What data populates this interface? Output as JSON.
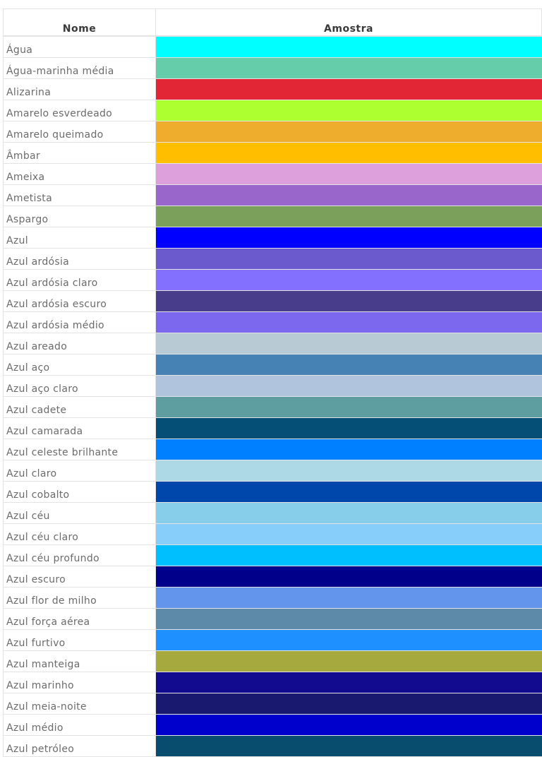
{
  "table": {
    "headers": {
      "name": "Nome",
      "sample": "Amostra"
    },
    "rows": [
      {
        "name": "Água",
        "color": "#00FFFF"
      },
      {
        "name": "Água-marinha média",
        "color": "#66CDAA"
      },
      {
        "name": "Alizarina",
        "color": "#E32636"
      },
      {
        "name": "Amarelo esverdeado",
        "color": "#ADFF2F"
      },
      {
        "name": "Amarelo queimado",
        "color": "#EEAD2D"
      },
      {
        "name": "Âmbar",
        "color": "#FFBF00"
      },
      {
        "name": "Ameixa",
        "color": "#DDA0DD"
      },
      {
        "name": "Ametista",
        "color": "#9966CC"
      },
      {
        "name": "Aspargo",
        "color": "#7BA05B"
      },
      {
        "name": "Azul",
        "color": "#0000FF"
      },
      {
        "name": "Azul ardósia",
        "color": "#6A5ACD"
      },
      {
        "name": "Azul ardósia claro",
        "color": "#8470FF"
      },
      {
        "name": "Azul ardósia escuro",
        "color": "#483D8B"
      },
      {
        "name": "Azul ardósia médio",
        "color": "#7B68EE"
      },
      {
        "name": "Azul areado",
        "color": "#B8CAD4"
      },
      {
        "name": "Azul aço",
        "color": "#4682B4"
      },
      {
        "name": "Azul aço claro",
        "color": "#B0C4DE"
      },
      {
        "name": "Azul cadete",
        "color": "#5F9EA0"
      },
      {
        "name": "Azul camarada",
        "color": "#054F77"
      },
      {
        "name": "Azul celeste brilhante",
        "color": "#007FFF"
      },
      {
        "name": "Azul claro",
        "color": "#ADD8E6"
      },
      {
        "name": "Azul cobalto",
        "color": "#0047AB"
      },
      {
        "name": "Azul céu",
        "color": "#87CEEB"
      },
      {
        "name": "Azul céu claro",
        "color": "#87CEFA"
      },
      {
        "name": "Azul céu profundo",
        "color": "#00BFFF"
      },
      {
        "name": "Azul escuro",
        "color": "#00008B"
      },
      {
        "name": "Azul flor de milho",
        "color": "#6495ED"
      },
      {
        "name": "Azul força aérea",
        "color": "#5D8AA8"
      },
      {
        "name": "Azul furtivo",
        "color": "#1E90FF"
      },
      {
        "name": "Azul manteiga",
        "color": "#A6AA3E"
      },
      {
        "name": "Azul marinho",
        "color": "#120A8F"
      },
      {
        "name": "Azul meia-noite",
        "color": "#191970"
      },
      {
        "name": "Azul médio",
        "color": "#0000CD"
      },
      {
        "name": "Azul petróleo",
        "color": "#084D6E"
      }
    ]
  }
}
